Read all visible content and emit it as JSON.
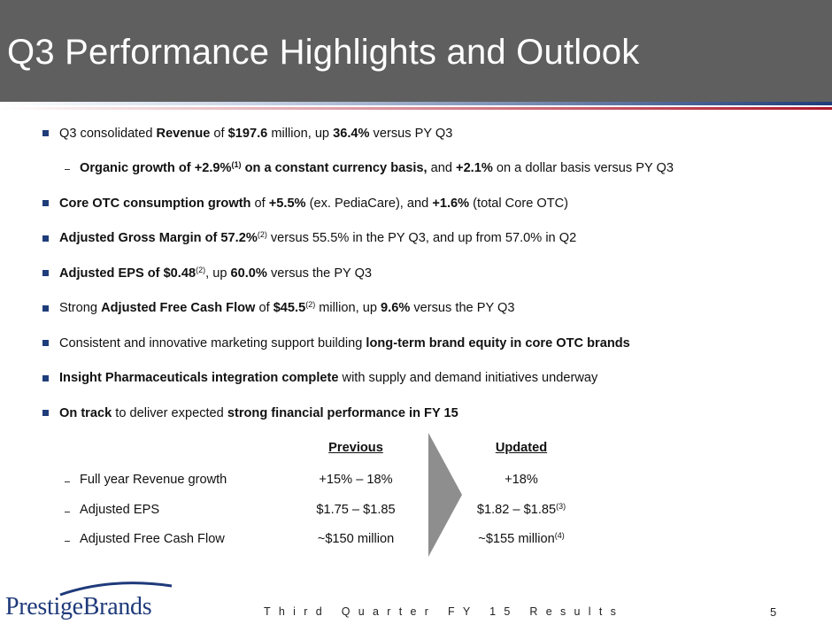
{
  "header": {
    "title": "Q3 Performance Highlights and Outlook"
  },
  "bullets": {
    "b1": {
      "pre": "Q3 consolidated ",
      "bold1": "Revenue",
      "mid1": " of ",
      "bold2": "$197.6",
      "mid2": " million, up ",
      "bold3": "36.4%",
      "post": " versus PY Q3"
    },
    "b1_sub": {
      "bold1": "Organic growth of +2.9%",
      "sup": "(1)",
      "bold2": " on a constant currency basis,",
      "mid": " and ",
      "bold3": "+2.1%",
      "post": " on a dollar basis versus PY Q3"
    },
    "b2": {
      "bold1": "Core OTC consumption growth",
      "mid1": " of ",
      "bold2": "+5.5%",
      "mid2": " (ex. PediaCare), and ",
      "bold3": "+1.6%",
      "post": " (total Core OTC)"
    },
    "b3": {
      "bold1": "Adjusted Gross Margin of 57.2%",
      "sup": "(2)",
      "post": " versus 55.5% in the PY Q3, and up from 57.0% in Q2"
    },
    "b4": {
      "bold1": "Adjusted EPS of $0.48",
      "sup": "(2)",
      "mid": ", up ",
      "bold2": "60.0%",
      "post": " versus the PY Q3"
    },
    "b5": {
      "pre": "Strong ",
      "bold1": "Adjusted Free Cash Flow",
      "mid1": " of ",
      "bold2": "$45.5",
      "sup": "(2)",
      "mid2": " million, up ",
      "bold3": "9.6%",
      "post": " versus the PY Q3"
    },
    "b6": {
      "pre": "Consistent and innovative marketing support building ",
      "bold1": "long-term brand equity in core OTC brands"
    },
    "b7": {
      "bold1": "Insight Pharmaceuticals integration complete",
      "post": " with supply and demand initiatives underway"
    },
    "b8": {
      "bold1": "On track",
      "mid": " to deliver expected ",
      "bold2": "strong financial performance in FY 15"
    }
  },
  "outlook": {
    "col_previous": "Previous",
    "col_updated": "Updated",
    "rows": [
      {
        "label": "Full year Revenue growth",
        "previous": "+15% – 18%",
        "updated": "+18%",
        "updated_sup": ""
      },
      {
        "label": "Adjusted EPS",
        "previous": "$1.75 – $1.85",
        "updated": "$1.82 – $1.85",
        "updated_sup": "(3)"
      },
      {
        "label": "Adjusted Free Cash Flow",
        "previous": "~$150 million",
        "updated": "~$155 million",
        "updated_sup": "(4)"
      }
    ]
  },
  "footer": {
    "text": "Third Quarter FY 15 Results",
    "page": "5",
    "logo": "PrestigeBrands"
  },
  "colors": {
    "header_bg": "#5f5f5f",
    "bullet": "#1f3d7a",
    "accent_red": "#b0182c",
    "logo_blue": "#1e3a7a"
  }
}
